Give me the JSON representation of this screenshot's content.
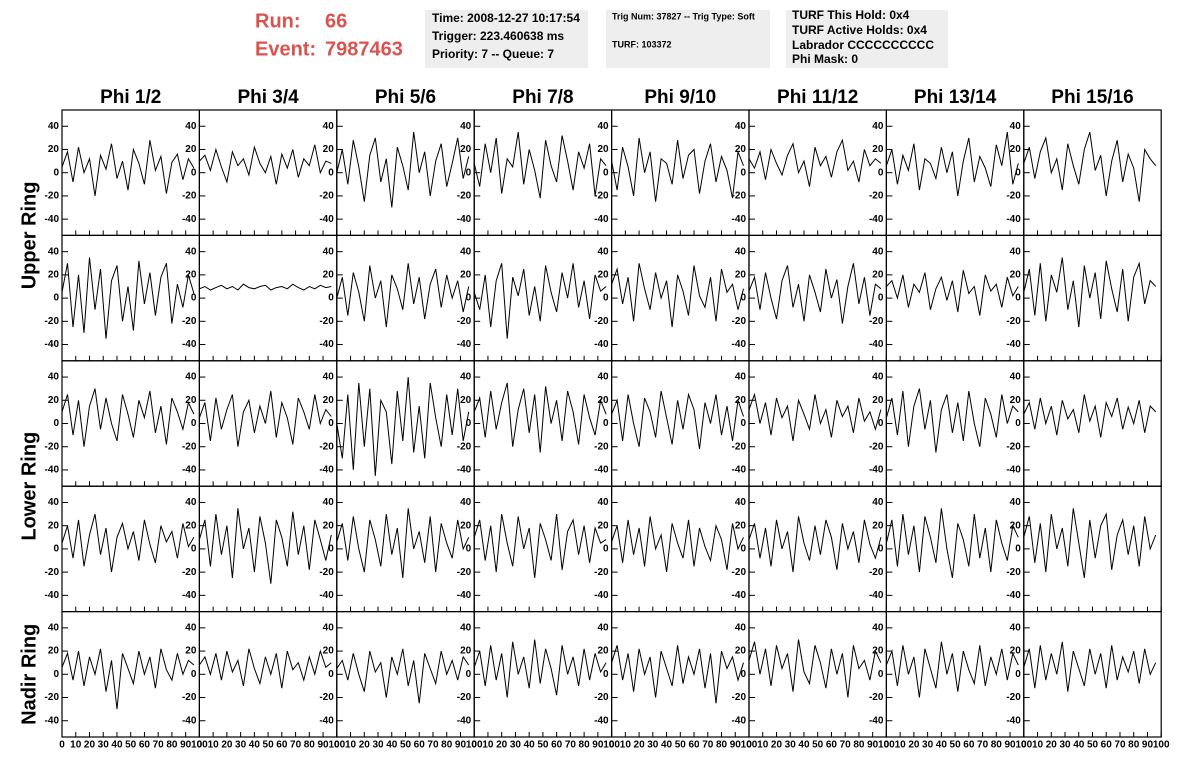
{
  "header": {
    "run_label": "Run:",
    "run": "66",
    "event_label": "Event:",
    "event": "7987463",
    "box1": [
      "Time: 2008-12-27 10:17:54",
      "Trigger: 223.460638 ms",
      "Priority: 7 -- Queue: 7"
    ],
    "box2": [
      "Trig Num: 37827 -- Trig Type: Soft",
      "TURF: 103372"
    ],
    "box3": [
      "TURF This Hold: 0x4",
      "TURF Active Holds: 0x4",
      "Labrador CCCCCCCCCC",
      "Phi Mask: 0"
    ]
  },
  "columns": [
    "Phi 1/2",
    "Phi 3/4",
    "Phi 5/6",
    "Phi 7/8",
    "Phi 9/10",
    "Phi 11/12",
    "Phi 13/14",
    "Phi 15/16"
  ],
  "ring_labels": [
    "Upper Ring",
    "Lower Ring",
    "Nadir Ring"
  ],
  "axes": {
    "x": [
      0,
      4,
      8,
      12,
      16,
      20,
      24,
      28,
      32,
      36,
      40,
      44,
      48,
      52,
      56,
      60,
      64,
      68,
      72,
      76,
      80,
      84,
      88,
      92,
      96
    ],
    "xlim": [
      0,
      100
    ],
    "xticks": [
      0,
      10,
      20,
      30,
      40,
      50,
      60,
      70,
      80,
      90,
      100
    ],
    "ylim": [
      -54,
      54
    ],
    "yticks": [
      -40,
      -20,
      0,
      20,
      40
    ],
    "color": "#000000"
  },
  "chart_data": [
    {
      "type": "line",
      "values": [
        5,
        18,
        -8,
        22,
        0,
        12,
        -20,
        15,
        3,
        25,
        -5,
        10,
        -15,
        20,
        8,
        -10,
        28,
        2,
        14,
        -18,
        9,
        16,
        -6,
        12,
        4
      ]
    },
    {
      "type": "line",
      "values": [
        10,
        15,
        2,
        20,
        5,
        -8,
        18,
        6,
        12,
        -2,
        22,
        8,
        0,
        14,
        -10,
        16,
        4,
        20,
        -4,
        12,
        6,
        24,
        0,
        10,
        8
      ]
    },
    {
      "type": "line",
      "values": [
        0,
        20,
        -10,
        28,
        5,
        -25,
        15,
        30,
        -8,
        12,
        -30,
        22,
        6,
        -15,
        35,
        0,
        18,
        -20,
        10,
        25,
        -12,
        8,
        30,
        -5,
        14
      ]
    },
    {
      "type": "line",
      "values": [
        8,
        -12,
        25,
        0,
        30,
        -18,
        12,
        5,
        35,
        -10,
        20,
        2,
        -22,
        28,
        6,
        -8,
        32,
        10,
        -15,
        18,
        4,
        25,
        -20,
        12,
        6
      ]
    },
    {
      "type": "line",
      "values": [
        10,
        -15,
        22,
        5,
        -20,
        30,
        0,
        18,
        -25,
        12,
        8,
        -10,
        28,
        -5,
        15,
        20,
        -18,
        10,
        25,
        -8,
        14,
        2,
        -22,
        18,
        6
      ]
    },
    {
      "type": "line",
      "values": [
        12,
        4,
        18,
        -6,
        20,
        8,
        -2,
        15,
        25,
        0,
        10,
        -12,
        22,
        6,
        14,
        -4,
        18,
        28,
        2,
        10,
        -8,
        20,
        6,
        12,
        8
      ]
    },
    {
      "type": "line",
      "values": [
        6,
        20,
        -10,
        15,
        2,
        25,
        -15,
        12,
        8,
        -5,
        22,
        0,
        18,
        -20,
        10,
        30,
        -8,
        14,
        4,
        -12,
        24,
        6,
        35,
        -10,
        8
      ]
    },
    {
      "type": "line",
      "values": [
        8,
        22,
        -5,
        18,
        30,
        0,
        12,
        -15,
        25,
        6,
        -10,
        20,
        35,
        2,
        15,
        -20,
        10,
        28,
        -8,
        16,
        4,
        -25,
        20,
        12,
        6
      ]
    },
    {
      "type": "line",
      "values": [
        5,
        30,
        -25,
        20,
        -30,
        35,
        -10,
        25,
        -35,
        15,
        28,
        -20,
        10,
        -28,
        32,
        -5,
        22,
        -15,
        18,
        30,
        -22,
        12,
        -8,
        20,
        4
      ]
    },
    {
      "type": "line",
      "values": [
        8,
        10,
        7,
        9,
        11,
        8,
        10,
        7,
        12,
        9,
        8,
        10,
        11,
        7,
        9,
        10,
        8,
        12,
        9,
        7,
        10,
        8,
        11,
        9,
        10
      ]
    },
    {
      "type": "line",
      "values": [
        0,
        18,
        -15,
        22,
        5,
        -20,
        28,
        0,
        15,
        -25,
        20,
        8,
        -10,
        30,
        -5,
        18,
        -18,
        12,
        25,
        -8,
        20,
        0,
        15,
        -12,
        10
      ]
    },
    {
      "type": "line",
      "values": [
        5,
        -10,
        20,
        -25,
        15,
        30,
        -35,
        18,
        2,
        25,
        -15,
        10,
        -20,
        28,
        5,
        -12,
        22,
        0,
        30,
        -8,
        15,
        -18,
        20,
        6,
        10
      ]
    },
    {
      "type": "line",
      "values": [
        12,
        25,
        -5,
        18,
        -20,
        30,
        8,
        -10,
        22,
        0,
        15,
        -25,
        20,
        6,
        -15,
        28,
        2,
        -8,
        18,
        -20,
        25,
        5,
        12,
        -10,
        8
      ]
    },
    {
      "type": "line",
      "values": [
        6,
        18,
        -10,
        22,
        0,
        -18,
        15,
        28,
        -8,
        12,
        -20,
        20,
        5,
        -12,
        25,
        0,
        16,
        -22,
        10,
        30,
        -5,
        18,
        -15,
        12,
        8
      ]
    },
    {
      "type": "line",
      "values": [
        10,
        15,
        0,
        20,
        -8,
        12,
        5,
        22,
        -10,
        8,
        18,
        -2,
        15,
        -12,
        24,
        4,
        10,
        -15,
        20,
        6,
        12,
        -8,
        18,
        2,
        10
      ]
    },
    {
      "type": "line",
      "values": [
        5,
        25,
        -15,
        30,
        -20,
        20,
        5,
        35,
        -10,
        15,
        -25,
        28,
        0,
        22,
        -18,
        32,
        8,
        -12,
        25,
        -20,
        18,
        30,
        -5,
        15,
        10
      ]
    },
    {
      "type": "line",
      "values": [
        10,
        25,
        -10,
        20,
        -20,
        15,
        30,
        -5,
        22,
        0,
        -15,
        25,
        8,
        -12,
        20,
        5,
        28,
        -8,
        15,
        -18,
        22,
        10,
        -5,
        18,
        8
      ]
    },
    {
      "type": "line",
      "values": [
        5,
        18,
        -15,
        22,
        -5,
        12,
        25,
        -20,
        10,
        20,
        -8,
        15,
        0,
        28,
        -12,
        18,
        5,
        -18,
        22,
        10,
        -5,
        25,
        0,
        12,
        6
      ]
    },
    {
      "type": "line",
      "values": [
        0,
        -30,
        25,
        -40,
        35,
        -20,
        30,
        -45,
        20,
        10,
        -35,
        28,
        -15,
        40,
        -25,
        15,
        -30,
        35,
        5,
        -20,
        25,
        -10,
        30,
        -15,
        10
      ]
    },
    {
      "type": "line",
      "values": [
        10,
        22,
        -12,
        28,
        -5,
        18,
        35,
        -20,
        12,
        30,
        -8,
        25,
        -25,
        32,
        0,
        20,
        -15,
        28,
        10,
        -18,
        25,
        5,
        -10,
        20,
        8
      ]
    },
    {
      "type": "line",
      "values": [
        8,
        20,
        -15,
        25,
        0,
        -20,
        22,
        10,
        -12,
        28,
        5,
        -18,
        20,
        -5,
        25,
        12,
        -22,
        18,
        0,
        25,
        -10,
        15,
        -15,
        20,
        6
      ]
    },
    {
      "type": "line",
      "values": [
        12,
        25,
        0,
        18,
        -10,
        22,
        5,
        15,
        -15,
        20,
        8,
        -5,
        25,
        0,
        12,
        -12,
        20,
        6,
        15,
        -8,
        22,
        2,
        10,
        -5,
        12
      ]
    },
    {
      "type": "line",
      "values": [
        5,
        22,
        -10,
        28,
        -20,
        15,
        30,
        -5,
        20,
        -25,
        12,
        25,
        -8,
        18,
        -15,
        28,
        0,
        -20,
        22,
        8,
        -12,
        25,
        0,
        15,
        10
      ]
    },
    {
      "type": "line",
      "values": [
        8,
        18,
        -5,
        22,
        0,
        15,
        -10,
        20,
        4,
        12,
        -8,
        25,
        2,
        15,
        -12,
        18,
        6,
        22,
        -5,
        14,
        0,
        20,
        -8,
        15,
        10
      ]
    },
    {
      "type": "line",
      "values": [
        5,
        20,
        -8,
        25,
        -15,
        12,
        30,
        -5,
        18,
        -20,
        10,
        22,
        0,
        15,
        -10,
        25,
        4,
        -12,
        20,
        6,
        15,
        -8,
        22,
        2,
        10
      ]
    },
    {
      "type": "line",
      "values": [
        8,
        25,
        -15,
        30,
        -5,
        20,
        -25,
        35,
        0,
        18,
        -20,
        28,
        5,
        -30,
        25,
        10,
        -15,
        32,
        -5,
        20,
        -18,
        25,
        8,
        -10,
        12
      ]
    },
    {
      "type": "line",
      "values": [
        6,
        22,
        -10,
        28,
        0,
        -20,
        25,
        8,
        -15,
        30,
        -5,
        18,
        -25,
        35,
        0,
        15,
        -12,
        28,
        -20,
        22,
        5,
        -8,
        25,
        0,
        10
      ]
    },
    {
      "type": "line",
      "values": [
        10,
        25,
        -10,
        20,
        -20,
        30,
        5,
        -15,
        28,
        0,
        18,
        -25,
        22,
        8,
        -10,
        30,
        -18,
        15,
        25,
        -5,
        20,
        -12,
        18,
        5,
        8
      ]
    },
    {
      "type": "line",
      "values": [
        6,
        20,
        -12,
        25,
        -5,
        18,
        -15,
        28,
        0,
        12,
        -20,
        22,
        5,
        -8,
        25,
        -15,
        18,
        2,
        -10,
        20,
        8,
        -18,
        22,
        0,
        10
      ]
    },
    {
      "type": "line",
      "values": [
        8,
        22,
        -8,
        18,
        -15,
        25,
        0,
        15,
        -20,
        28,
        5,
        -10,
        20,
        -5,
        25,
        10,
        -18,
        22,
        0,
        15,
        -12,
        25,
        4,
        -8,
        10
      ]
    },
    {
      "type": "line",
      "values": [
        5,
        25,
        -15,
        30,
        -5,
        20,
        -20,
        28,
        10,
        -12,
        35,
        0,
        -25,
        22,
        8,
        -15,
        30,
        -8,
        18,
        -20,
        25,
        5,
        -10,
        20,
        10
      ]
    },
    {
      "type": "line",
      "values": [
        10,
        28,
        -12,
        22,
        -20,
        30,
        0,
        18,
        -15,
        35,
        5,
        -25,
        25,
        -8,
        20,
        30,
        -18,
        12,
        25,
        -5,
        20,
        -15,
        28,
        0,
        12
      ]
    },
    {
      "type": "line",
      "values": [
        6,
        18,
        -5,
        20,
        -10,
        15,
        0,
        22,
        -15,
        12,
        -30,
        18,
        5,
        -8,
        20,
        0,
        15,
        -12,
        22,
        4,
        -5,
        18,
        0,
        12,
        8
      ]
    },
    {
      "type": "line",
      "values": [
        8,
        15,
        0,
        18,
        -5,
        20,
        2,
        12,
        -10,
        22,
        5,
        -8,
        15,
        0,
        18,
        -12,
        20,
        4,
        10,
        -5,
        15,
        0,
        20,
        6,
        10
      ]
    },
    {
      "type": "line",
      "values": [
        5,
        12,
        -5,
        18,
        0,
        -15,
        20,
        2,
        10,
        -20,
        15,
        0,
        22,
        -10,
        12,
        -25,
        18,
        5,
        -8,
        20,
        0,
        12,
        -5,
        15,
        8
      ]
    },
    {
      "type": "line",
      "values": [
        6,
        20,
        -10,
        25,
        -5,
        18,
        -20,
        28,
        0,
        15,
        -12,
        30,
        -8,
        22,
        5,
        -18,
        25,
        0,
        15,
        -10,
        22,
        -5,
        18,
        2,
        10
      ]
    },
    {
      "type": "line",
      "values": [
        10,
        25,
        -5,
        18,
        -15,
        22,
        0,
        15,
        -20,
        20,
        5,
        -10,
        25,
        -8,
        15,
        0,
        22,
        -12,
        18,
        -25,
        20,
        5,
        15,
        -5,
        10
      ]
    },
    {
      "type": "line",
      "values": [
        12,
        28,
        0,
        22,
        -10,
        25,
        5,
        18,
        -15,
        30,
        2,
        -8,
        25,
        10,
        -12,
        22,
        0,
        18,
        -20,
        25,
        5,
        12,
        -5,
        20,
        10
      ]
    },
    {
      "type": "line",
      "values": [
        8,
        20,
        -10,
        25,
        0,
        15,
        -20,
        22,
        5,
        -12,
        28,
        0,
        18,
        -15,
        20,
        4,
        -8,
        25,
        -10,
        15,
        0,
        22,
        -5,
        18,
        8
      ]
    },
    {
      "type": "line",
      "values": [
        6,
        22,
        -12,
        25,
        -5,
        18,
        0,
        28,
        -15,
        20,
        5,
        -10,
        22,
        0,
        18,
        -12,
        25,
        -5,
        15,
        2,
        20,
        -8,
        22,
        0,
        10
      ]
    }
  ]
}
